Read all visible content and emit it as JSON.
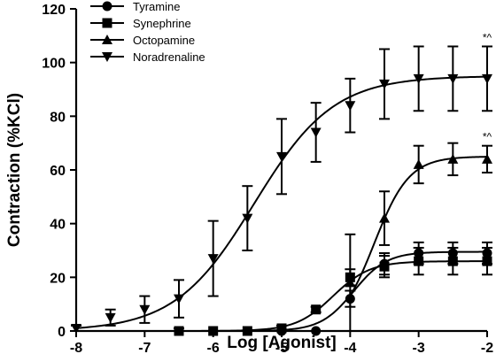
{
  "chart_data": {
    "type": "line",
    "xlabel": "Log [Agonist]",
    "ylabel": "Contraction (%KCl)",
    "xlim": [
      -8,
      -2
    ],
    "ylim": [
      0,
      120
    ],
    "x_ticks": [
      "-8",
      "-7",
      "-6",
      "-5",
      "-4",
      "-3",
      "-2"
    ],
    "y_ticks": [
      "0",
      "20",
      "40",
      "60",
      "80",
      "100",
      "120"
    ],
    "legend_position": "top-left",
    "grid": false,
    "series": [
      {
        "name": "Tyramine",
        "marker": "circle",
        "x": [
          -6.5,
          -6,
          -5.5,
          -5,
          -4.5,
          -4,
          -3.5,
          -3,
          -2.5,
          -2
        ],
        "y": [
          0,
          0,
          0,
          0,
          0,
          12,
          25,
          29,
          29,
          29
        ],
        "err": [
          0,
          0,
          0,
          0,
          0,
          3,
          4,
          4,
          4,
          4
        ],
        "curve": {
          "bottom": 0,
          "top": 29.5,
          "logEC50": -3.95,
          "hill": 1.8
        }
      },
      {
        "name": "Synephrine",
        "marker": "square",
        "x": [
          -6.5,
          -6,
          -5.5,
          -5,
          -4.5,
          -4,
          -3.5,
          -3,
          -2.5,
          -2
        ],
        "y": [
          0,
          0,
          0,
          1,
          8,
          20,
          24,
          26,
          26,
          26
        ],
        "err": [
          1,
          0,
          0,
          1,
          1,
          3,
          4,
          5,
          5,
          5
        ],
        "curve": {
          "bottom": 0,
          "top": 26,
          "logEC50": -4.25,
          "hill": 1.6
        }
      },
      {
        "name": "Octopamine",
        "marker": "triangle-up",
        "x": [
          -4,
          -3.5,
          -3,
          -2.5,
          -2
        ],
        "y": [
          18,
          42,
          62,
          64,
          64
        ],
        "err": [
          18,
          10,
          7,
          6,
          5
        ],
        "curve": {
          "bottom": 0,
          "top": 65,
          "logEC50": -3.65,
          "hill": 1.7
        },
        "annotation": "*^"
      },
      {
        "name": "Noradrenaline",
        "marker": "triangle-down",
        "x": [
          -8,
          -7.5,
          -7,
          -6.5,
          -6,
          -5.5,
          -5,
          -4.5,
          -4,
          -3.5,
          -3,
          -2.5,
          -2
        ],
        "y": [
          1,
          5,
          8,
          12,
          27,
          42,
          65,
          74,
          84,
          92,
          94,
          94,
          94
        ],
        "err": [
          1,
          3,
          5,
          7,
          14,
          12,
          14,
          11,
          10,
          13,
          12,
          12,
          12
        ],
        "curve": {
          "bottom": 0,
          "top": 95,
          "logEC50": -5.4,
          "hill": 0.75
        },
        "annotation": "*^"
      }
    ]
  }
}
